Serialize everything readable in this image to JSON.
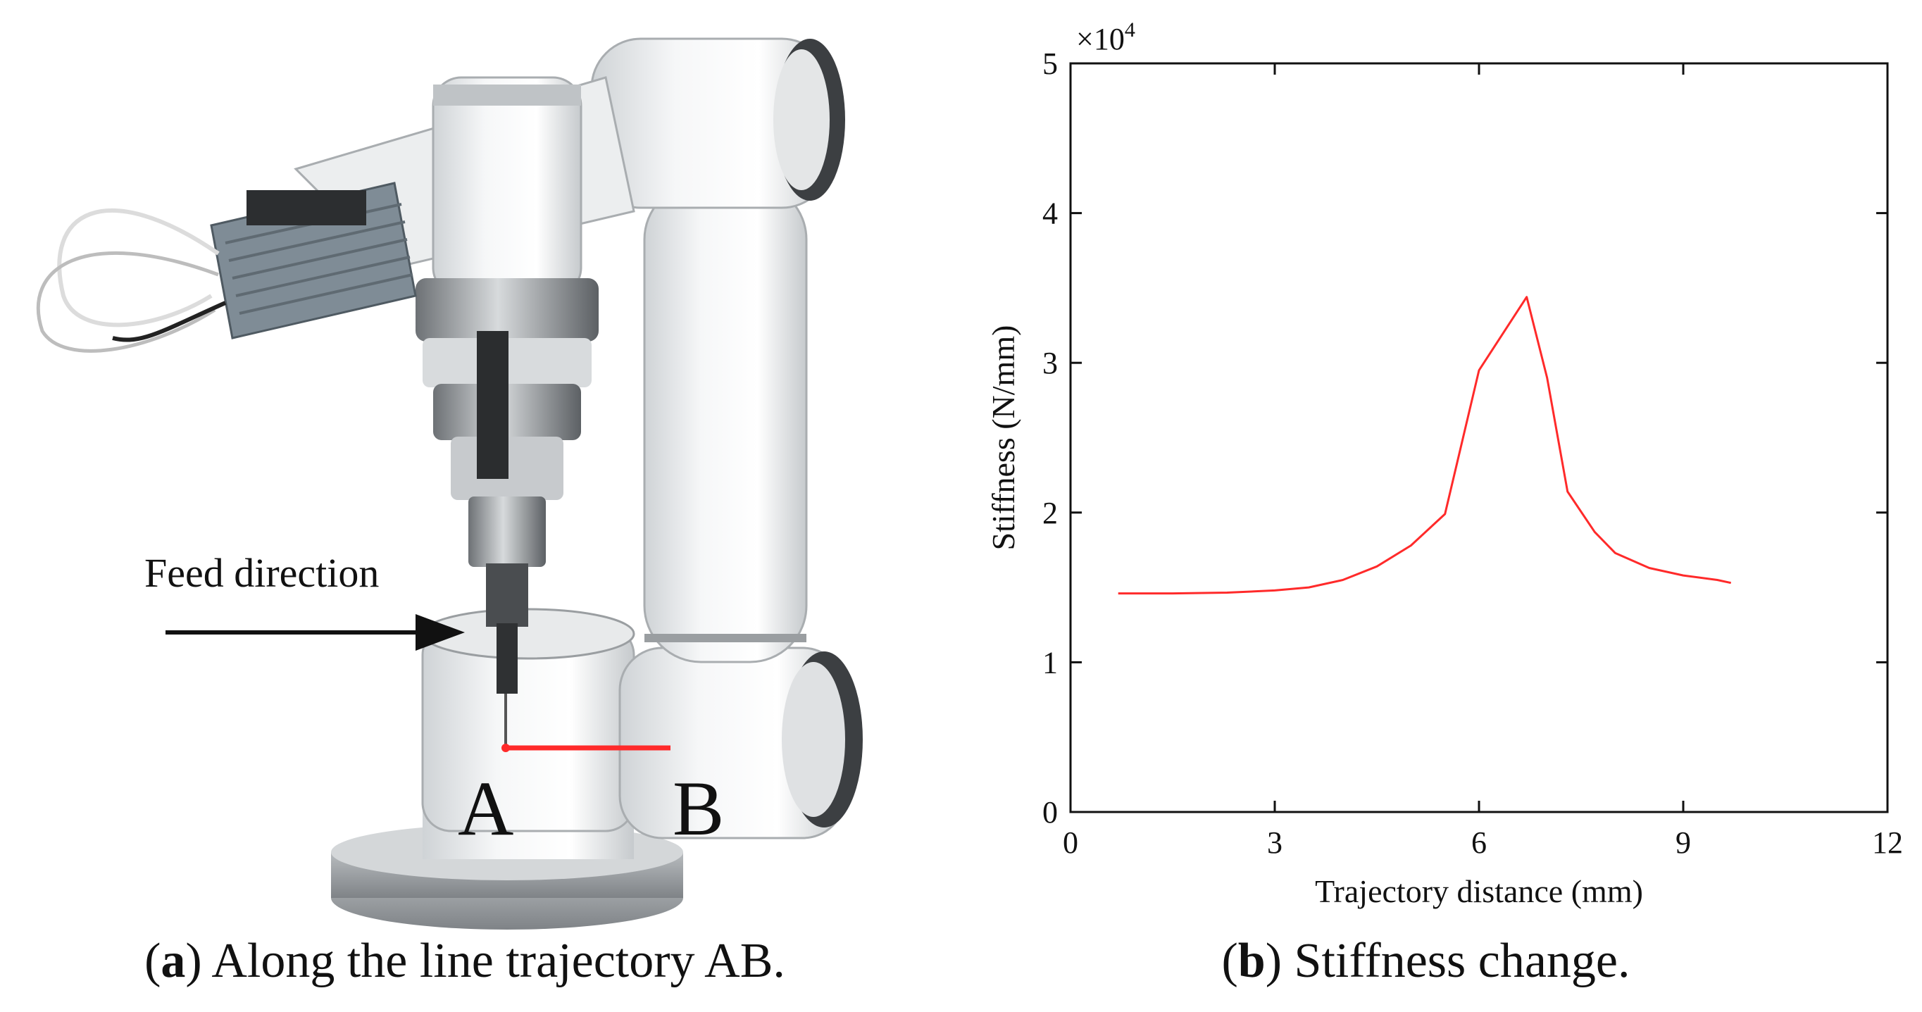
{
  "panel_a": {
    "caption_letter": "a",
    "caption_text": "Along the line trajectory AB.",
    "feed_label": "Feed direction",
    "point_a": "A",
    "point_b": "B",
    "trajectory_color": "#ff2a2a"
  },
  "panel_b": {
    "caption_letter": "b",
    "caption_text": "Stiffness change."
  },
  "chart_data": {
    "type": "line",
    "title": "",
    "xlabel": "Trajectory distance (mm)",
    "ylabel": "Stiffness (N/mm)",
    "y_multiplier_label": "×10",
    "y_multiplier_exponent": "4",
    "xlim": [
      0,
      12
    ],
    "ylim": [
      0,
      5
    ],
    "x_ticks": [
      0,
      3,
      6,
      9,
      12
    ],
    "y_ticks": [
      0,
      1,
      2,
      3,
      4,
      5
    ],
    "grid": false,
    "series": [
      {
        "color": "#ff2a2a",
        "x": [
          0.7,
          1.5,
          2.3,
          3.0,
          3.5,
          4.0,
          4.5,
          5.0,
          5.5,
          6.0,
          6.3,
          6.7,
          7.0,
          7.3,
          7.7,
          8.0,
          8.5,
          9.0,
          9.5,
          9.7
        ],
        "y": [
          1.46,
          1.46,
          1.465,
          1.48,
          1.5,
          1.55,
          1.64,
          1.78,
          1.99,
          2.95,
          3.16,
          3.44,
          2.9,
          2.14,
          1.87,
          1.73,
          1.63,
          1.58,
          1.55,
          1.53
        ]
      }
    ]
  }
}
